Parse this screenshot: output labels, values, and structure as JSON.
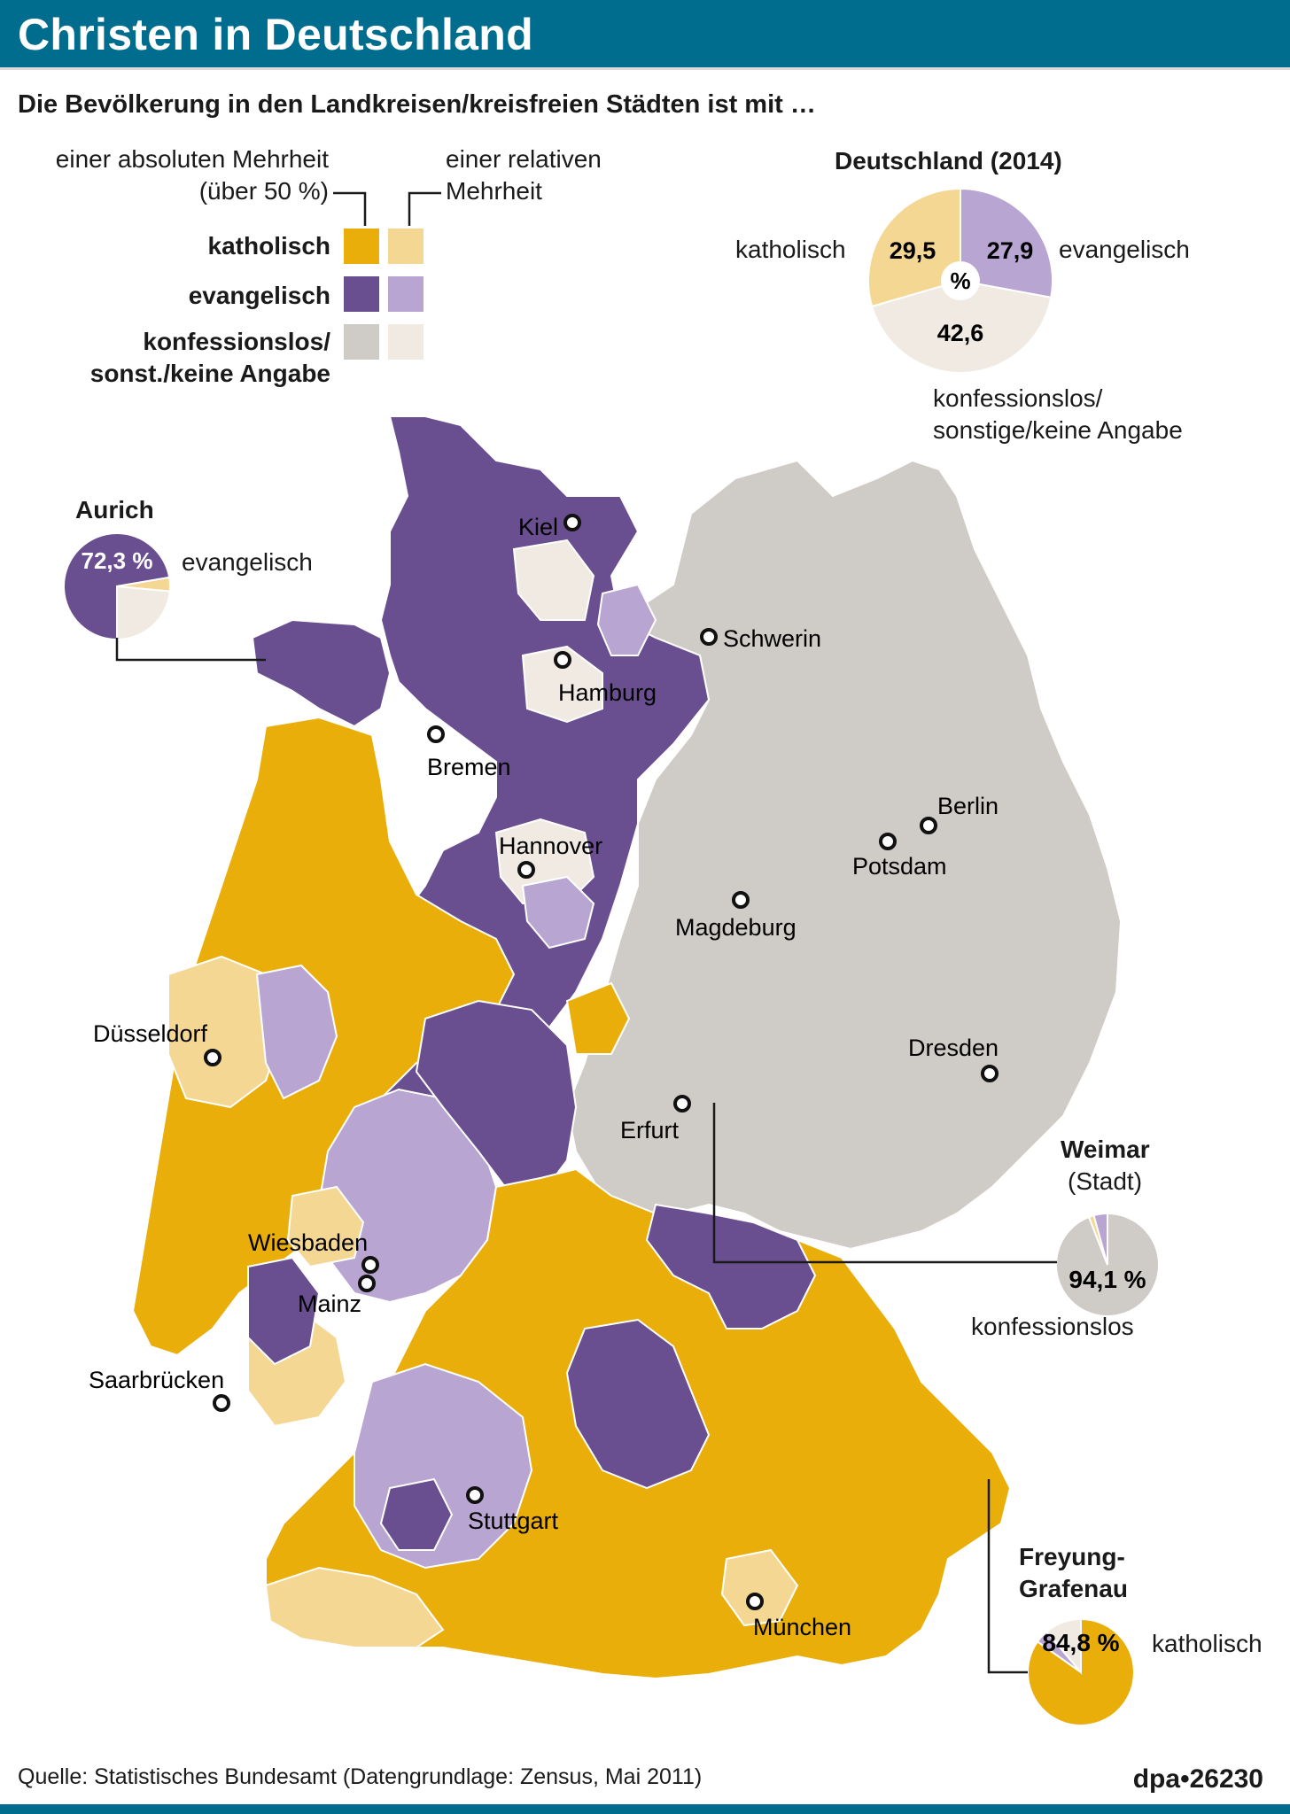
{
  "title": "Christen in Deutschland",
  "subtitle": "Die Bevölkerung in den Landkreisen/kreisfreien Städten ist mit …",
  "colors": {
    "katholisch_abs": "#e9ae09",
    "katholisch_rel": "#f5d794",
    "evangelisch_abs": "#6a4f90",
    "evangelisch_rel": "#b8a5d1",
    "konfessionslos_abs": "#cfcbc6",
    "konfessionslos_rel": "#f0eae3",
    "title_bar": "#006d8f"
  },
  "legend": {
    "col_absolute": [
      "einer absoluten Mehrheit",
      "(über 50 %)"
    ],
    "col_relative": [
      "einer relativen",
      "Mehrheit"
    ],
    "rows": [
      {
        "label": "katholisch"
      },
      {
        "label": "evangelisch"
      },
      {
        "label": "konfessionslos/",
        "label2": "sonst./keine Angabe"
      }
    ]
  },
  "germany_pie": {
    "title": "Deutschland (2014)",
    "center": "%",
    "slices": [
      {
        "label": "katholisch",
        "value": 29.5,
        "display": "29,5"
      },
      {
        "label": "evangelisch",
        "value": 27.9,
        "display": "27,9"
      },
      {
        "label": "konfessionslos/ sonstige/keine Angabe",
        "value": 42.6,
        "display": "42,6"
      }
    ],
    "label_kath": "katholisch",
    "label_ev": "evangelisch",
    "label_konf": [
      "konfessionslos/",
      "sonstige/keine Angabe"
    ]
  },
  "callouts": {
    "aurich": {
      "title": "Aurich",
      "value": 72.3,
      "display": "72,3 %",
      "label": "evangelisch"
    },
    "weimar": {
      "title": "Weimar",
      "subtitle": "(Stadt)",
      "value": 94.1,
      "display": "94,1 %",
      "label": "konfessionslos"
    },
    "freyung": {
      "title": [
        "Freyung-",
        "Grafenau"
      ],
      "value": 84.8,
      "display": "84,8 %",
      "label": "katholisch"
    }
  },
  "cities": [
    "Kiel",
    "Schwerin",
    "Hamburg",
    "Bremen",
    "Hannover",
    "Berlin",
    "Potsdam",
    "Magdeburg",
    "Düsseldorf",
    "Dresden",
    "Erfurt",
    "Wiesbaden",
    "Mainz",
    "Saarbrücken",
    "Stuttgart",
    "München"
  ],
  "source": "Quelle: Statistisches Bundesamt (Datengrundlage: Zensus, Mai 2011)",
  "credit": "dpa•26230"
}
